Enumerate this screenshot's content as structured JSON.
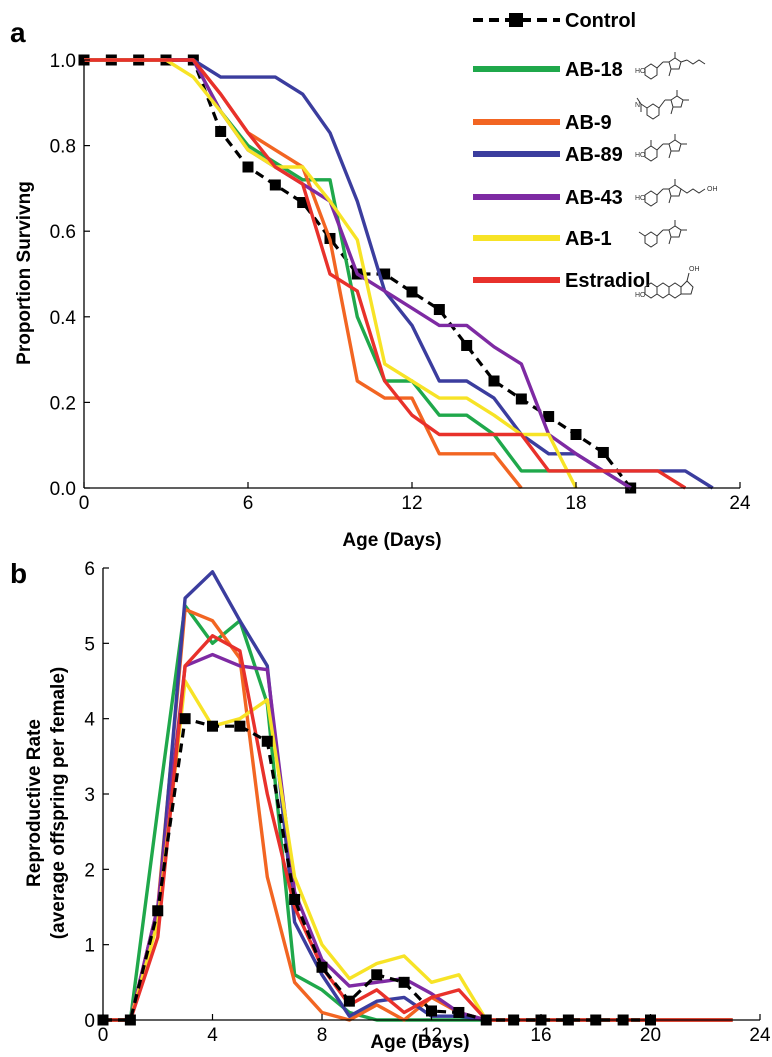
{
  "panels": {
    "a": "a",
    "b": "b"
  },
  "chart_data": [
    {
      "type": "line",
      "panel": "a",
      "xlabel": "Age (Days)",
      "ylabel": "Proportion Survivng",
      "xlim": [
        0,
        24
      ],
      "ylim": [
        0,
        1.0
      ],
      "xticks": [
        "0",
        "6",
        "12",
        "18",
        "24"
      ],
      "yticks": [
        "0.0",
        "0.2",
        "0.4",
        "0.6",
        "0.8",
        "1.0"
      ],
      "legend_position": "top-right",
      "series": [
        {
          "name": "Control",
          "color": "#000000",
          "dashed": true,
          "markers": true,
          "x": [
            0,
            1,
            2,
            3,
            4,
            5,
            6,
            7,
            8,
            9,
            10,
            11,
            12,
            13,
            14,
            15,
            16,
            17,
            18,
            19,
            20
          ],
          "y": [
            1.0,
            1.0,
            1.0,
            1.0,
            1.0,
            0.833,
            0.75,
            0.708,
            0.667,
            0.583,
            0.5,
            0.5,
            0.458,
            0.417,
            0.333,
            0.25,
            0.208,
            0.167,
            0.125,
            0.083,
            0.0
          ]
        },
        {
          "name": "AB-18",
          "color": "#1fa84b",
          "x": [
            0,
            1,
            2,
            3,
            4,
            5,
            6,
            7,
            8,
            9,
            10,
            11,
            12,
            13,
            14,
            15,
            16,
            17,
            18,
            19,
            20
          ],
          "y": [
            1.0,
            1.0,
            1.0,
            1.0,
            1.0,
            0.88,
            0.8,
            0.76,
            0.72,
            0.72,
            0.4,
            0.25,
            0.25,
            0.17,
            0.17,
            0.125,
            0.04,
            0.04,
            0.04,
            0.04,
            0.0
          ]
        },
        {
          "name": "AB-9",
          "color": "#f26522",
          "x": [
            0,
            1,
            2,
            3,
            4,
            5,
            6,
            7,
            8,
            9,
            10,
            11,
            12,
            13,
            14,
            15,
            16
          ],
          "y": [
            1.0,
            1.0,
            1.0,
            1.0,
            1.0,
            0.92,
            0.83,
            0.79,
            0.75,
            0.58,
            0.25,
            0.21,
            0.21,
            0.08,
            0.08,
            0.08,
            0.0
          ]
        },
        {
          "name": "AB-89",
          "color": "#3b3d9e",
          "x": [
            0,
            1,
            2,
            3,
            4,
            5,
            6,
            7,
            8,
            9,
            10,
            11,
            12,
            13,
            14,
            15,
            16,
            17,
            18,
            19,
            20,
            21,
            22,
            23
          ],
          "y": [
            1.0,
            1.0,
            1.0,
            1.0,
            1.0,
            0.96,
            0.96,
            0.96,
            0.92,
            0.83,
            0.67,
            0.46,
            0.38,
            0.25,
            0.25,
            0.21,
            0.125,
            0.08,
            0.08,
            0.04,
            0.04,
            0.04,
            0.04,
            0.0
          ]
        },
        {
          "name": "AB-43",
          "color": "#7e2aa3",
          "x": [
            0,
            1,
            2,
            3,
            4,
            5,
            6,
            7,
            8,
            9,
            10,
            11,
            12,
            13,
            14,
            15,
            16,
            17,
            18,
            19,
            20
          ],
          "y": [
            1.0,
            1.0,
            1.0,
            1.0,
            1.0,
            0.88,
            0.79,
            0.75,
            0.71,
            0.67,
            0.5,
            0.46,
            0.42,
            0.38,
            0.38,
            0.33,
            0.29,
            0.125,
            0.08,
            0.04,
            0.0
          ]
        },
        {
          "name": "AB-1",
          "color": "#f7e326",
          "x": [
            0,
            1,
            2,
            3,
            4,
            5,
            6,
            7,
            8,
            9,
            10,
            11,
            12,
            13,
            14,
            15,
            16,
            17,
            18
          ],
          "y": [
            1.0,
            1.0,
            1.0,
            1.0,
            0.96,
            0.88,
            0.79,
            0.75,
            0.75,
            0.67,
            0.58,
            0.29,
            0.25,
            0.21,
            0.21,
            0.17,
            0.125,
            0.125,
            0.0
          ]
        },
        {
          "name": "Estradiol",
          "color": "#e8312b",
          "x": [
            0,
            1,
            2,
            3,
            4,
            5,
            6,
            7,
            8,
            9,
            10,
            11,
            12,
            13,
            14,
            15,
            16,
            17,
            18,
            19,
            20,
            21,
            22
          ],
          "y": [
            1.0,
            1.0,
            1.0,
            1.0,
            1.0,
            0.92,
            0.83,
            0.75,
            0.71,
            0.5,
            0.46,
            0.25,
            0.17,
            0.125,
            0.125,
            0.125,
            0.125,
            0.04,
            0.04,
            0.04,
            0.04,
            0.04,
            0.0
          ]
        }
      ]
    },
    {
      "type": "line",
      "panel": "b",
      "xlabel": "Age (Days)",
      "ylabel": "Reproductive Rate",
      "ylabel2": "(average offspring per female)",
      "xlim": [
        0,
        24
      ],
      "ylim": [
        0,
        6
      ],
      "xticks": [
        "0",
        "4",
        "8",
        "12",
        "16",
        "20",
        "24"
      ],
      "yticks": [
        "0",
        "1",
        "2",
        "3",
        "4",
        "5",
        "6"
      ],
      "series": [
        {
          "name": "AB-18",
          "color": "#1fa84b",
          "x": [
            0,
            1,
            2,
            3,
            4,
            5,
            6,
            7,
            8,
            9,
            10,
            11,
            12,
            13,
            14,
            15,
            16,
            17,
            18,
            19,
            20,
            21,
            22,
            23
          ],
          "y": [
            0,
            0,
            2.8,
            5.5,
            5.0,
            5.3,
            4.2,
            0.6,
            0.4,
            0.1,
            0,
            0,
            0,
            0,
            0,
            0,
            0,
            0,
            0,
            0,
            0,
            0,
            0,
            0
          ]
        },
        {
          "name": "AB-9",
          "color": "#f26522",
          "x": [
            0,
            1,
            2,
            3,
            4,
            5,
            6,
            7,
            8,
            9,
            10,
            11,
            12,
            13,
            14,
            15,
            16,
            17,
            18,
            19,
            20,
            21,
            22,
            23
          ],
          "y": [
            0,
            0,
            1.5,
            5.45,
            5.3,
            4.8,
            1.9,
            0.5,
            0.1,
            0.0,
            0.2,
            0.0,
            0.3,
            0.1,
            0,
            0,
            0,
            0,
            0,
            0,
            0,
            0,
            0,
            0
          ]
        },
        {
          "name": "AB-89",
          "color": "#3b3d9e",
          "x": [
            0,
            1,
            2,
            3,
            4,
            5,
            6,
            7,
            8,
            9,
            10,
            11,
            12,
            13,
            14,
            15,
            16,
            17,
            18,
            19,
            20,
            21,
            22,
            23
          ],
          "y": [
            0,
            0,
            1.4,
            5.6,
            5.95,
            5.3,
            4.7,
            1.3,
            0.6,
            0.05,
            0.25,
            0.3,
            0.05,
            0.05,
            0,
            0,
            0,
            0,
            0,
            0,
            0,
            0,
            0,
            0
          ]
        },
        {
          "name": "AB-43",
          "color": "#7e2aa3",
          "x": [
            0,
            1,
            2,
            3,
            4,
            5,
            6,
            7,
            8,
            9,
            10,
            11,
            12,
            13,
            14,
            15,
            16,
            17,
            18,
            19,
            20,
            21,
            22,
            23
          ],
          "y": [
            0,
            0,
            1.5,
            4.7,
            4.85,
            4.7,
            4.65,
            1.7,
            0.8,
            0.45,
            0.5,
            0.55,
            0.35,
            0.1,
            0,
            0,
            0,
            0,
            0,
            0,
            0,
            0,
            0,
            0
          ]
        },
        {
          "name": "AB-1",
          "color": "#f7e326",
          "x": [
            0,
            1,
            2,
            3,
            4,
            5,
            6,
            7,
            8,
            9,
            10,
            11,
            12,
            13,
            14,
            15,
            16,
            17,
            18,
            19,
            20,
            21,
            22,
            23
          ],
          "y": [
            0,
            0,
            1.3,
            4.5,
            3.9,
            4.0,
            4.25,
            1.9,
            1.0,
            0.55,
            0.75,
            0.85,
            0.5,
            0.6,
            0,
            0,
            0,
            0,
            0,
            0,
            0,
            0,
            0,
            0
          ]
        },
        {
          "name": "Estradiol",
          "color": "#e8312b",
          "x": [
            0,
            1,
            2,
            3,
            4,
            5,
            6,
            7,
            8,
            9,
            10,
            11,
            12,
            13,
            14,
            15,
            16,
            17,
            18,
            19,
            20,
            21,
            22,
            23
          ],
          "y": [
            0,
            0,
            1.1,
            4.7,
            5.1,
            4.9,
            3.0,
            1.5,
            0.7,
            0.2,
            0.4,
            0.1,
            0.3,
            0.4,
            0,
            0,
            0,
            0,
            0,
            0,
            0,
            0,
            0,
            0
          ]
        },
        {
          "name": "Control",
          "color": "#000000",
          "dashed": true,
          "markers": true,
          "x": [
            0,
            1,
            2,
            3,
            4,
            5,
            6,
            7,
            8,
            9,
            10,
            11,
            12,
            13,
            14,
            15,
            16,
            17,
            18,
            19,
            20
          ],
          "y": [
            0,
            0,
            1.45,
            4.0,
            3.9,
            3.9,
            3.7,
            1.6,
            0.7,
            0.25,
            0.6,
            0.5,
            0.12,
            0.1,
            0,
            0,
            0,
            0,
            0,
            0,
            0
          ]
        }
      ]
    }
  ]
}
